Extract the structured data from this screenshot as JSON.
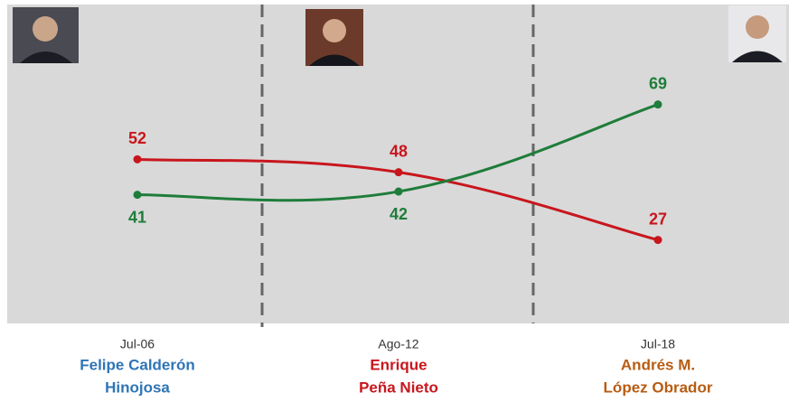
{
  "chart_data": {
    "type": "line",
    "categories": [
      "Jul-06",
      "Ago-12",
      "Jul-18"
    ],
    "series": [
      {
        "color": "#c8161d",
        "values": [
          52,
          48,
          27
        ]
      },
      {
        "color": "#1e7d3a",
        "values": [
          41,
          42,
          69
        ]
      }
    ],
    "ylim": [
      0,
      100
    ],
    "presidents": [
      {
        "lines": [
          "Felipe Calderón",
          "Hinojosa"
        ],
        "color": "#2e75b6"
      },
      {
        "lines": [
          "Enrique",
          "Peña Nieto"
        ],
        "color": "#c8161d"
      },
      {
        "lines": [
          "Andrés M.",
          "López Obrador"
        ],
        "color": "#b85c12"
      }
    ]
  }
}
